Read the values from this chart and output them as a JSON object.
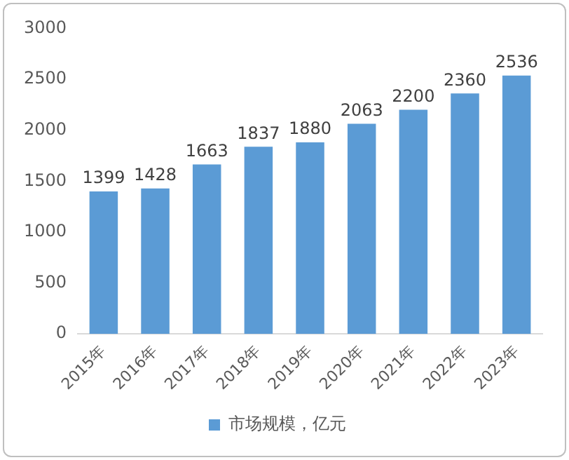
{
  "chart_data": {
    "type": "bar",
    "categories": [
      "2015年",
      "2016年",
      "2017年",
      "2018年",
      "2019年",
      "2020年",
      "2021年",
      "2022年",
      "2023年"
    ],
    "series": [
      {
        "name": "市场规模，亿元",
        "color": "#5b9bd5",
        "values": [
          1399,
          1428,
          1663,
          1837,
          1880,
          2063,
          2200,
          2360,
          2536
        ]
      }
    ],
    "ylim": [
      0,
      3000
    ],
    "yticks": [
      0,
      500,
      1000,
      1500,
      2000,
      2500,
      3000
    ],
    "grid": false,
    "legend": "bottom",
    "data_labels": true
  }
}
